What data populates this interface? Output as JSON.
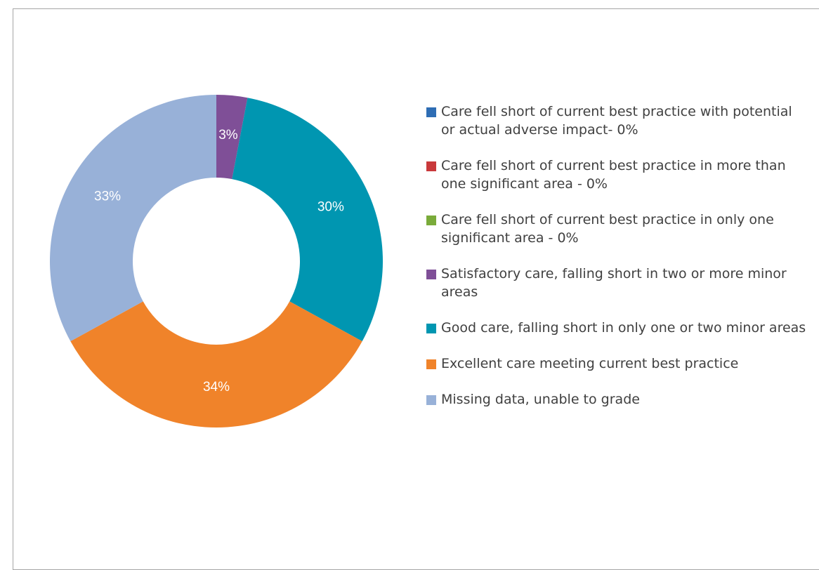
{
  "chart_data": {
    "type": "donut",
    "categories": [
      "Care fell short of current best practice with potential or actual adverse impact- 0%",
      "Care fell short of current best practice in more than one significant area - 0%",
      "Care fell short of current best practice in only one significant area - 0%",
      "Satisfactory care, falling short in two or more minor areas",
      "Good care, falling short in only one or two minor areas",
      "Excellent care meeting current best practice",
      "Missing data, unable to grade"
    ],
    "values": [
      0,
      0,
      0,
      3,
      30,
      34,
      33
    ],
    "value_labels": [
      null,
      null,
      null,
      "3%",
      "30%",
      "34%",
      "33%"
    ],
    "colors": [
      "#2e6db4",
      "#c9393b",
      "#7aab3a",
      "#7f4f97",
      "#0096b1",
      "#f0832a",
      "#98b1d8"
    ],
    "legend": "right"
  }
}
